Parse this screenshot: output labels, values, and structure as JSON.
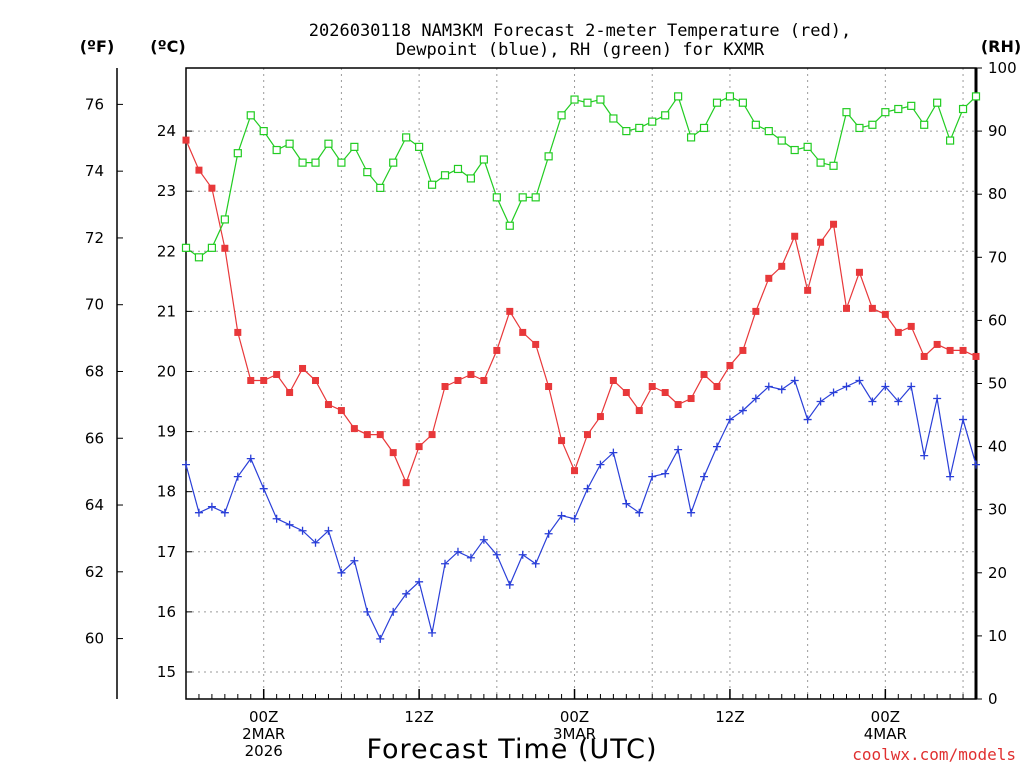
{
  "chart_data": {
    "type": "line",
    "title": [
      "2026030118 NAM3KM Forecast 2-meter Temperature (red),",
      "Dewpoint (blue), RH (green) for KXMR"
    ],
    "xlabel": "Forecast Time (UTC)",
    "credit": "coolwx.com/models",
    "units": {
      "fahrenheit": "(ºF)",
      "celsius": "(ºC)",
      "rh": "(RH)"
    },
    "x_hours": [
      18,
      19,
      20,
      21,
      22,
      23,
      24,
      25,
      26,
      27,
      28,
      29,
      30,
      31,
      32,
      33,
      34,
      35,
      36,
      37,
      38,
      39,
      40,
      41,
      42,
      43,
      44,
      45,
      46,
      47,
      48,
      49,
      50,
      51,
      52,
      53,
      54,
      55,
      56,
      57,
      58,
      59,
      60,
      61,
      62,
      63,
      64,
      65,
      66,
      67,
      68,
      69,
      70,
      71,
      72,
      73,
      74,
      75,
      76,
      77,
      78,
      79
    ],
    "xlim": [
      18,
      79
    ],
    "x_ticks": [
      {
        "hour": 24,
        "lines": [
          "00Z",
          "2MAR",
          "2026"
        ]
      },
      {
        "hour": 36,
        "lines": [
          "12Z"
        ]
      },
      {
        "hour": 48,
        "lines": [
          "00Z",
          "3MAR"
        ]
      },
      {
        "hour": 60,
        "lines": [
          "12Z"
        ]
      },
      {
        "hour": 72,
        "lines": [
          "00Z",
          "4MAR"
        ]
      }
    ],
    "celsius_axis": {
      "ylim": [
        14.55,
        25.05
      ],
      "ticks": [
        15,
        16,
        17,
        18,
        19,
        20,
        21,
        22,
        23,
        24
      ]
    },
    "fahrenheit_axis": {
      "ticks": [
        60,
        62,
        64,
        66,
        68,
        70,
        72,
        74,
        76
      ]
    },
    "rh_axis": {
      "ylim": [
        0,
        100
      ],
      "ticks": [
        0,
        10,
        20,
        30,
        40,
        50,
        60,
        70,
        80,
        90,
        100
      ]
    },
    "series": [
      {
        "name": "Temperature",
        "units": "C",
        "color": "#e8383a",
        "marker": "filled-square",
        "values": [
          23.85,
          23.35,
          23.05,
          22.05,
          20.65,
          19.85,
          19.85,
          19.95,
          19.65,
          20.05,
          19.85,
          19.45,
          19.35,
          19.05,
          18.95,
          18.95,
          18.65,
          18.15,
          18.75,
          18.95,
          19.75,
          19.85,
          19.95,
          19.85,
          20.35,
          21.0,
          20.65,
          20.45,
          19.75,
          18.85,
          18.35,
          18.95,
          19.25,
          19.85,
          19.65,
          19.35,
          19.75,
          19.65,
          19.45,
          19.55,
          19.95,
          19.75,
          20.1,
          20.35,
          21.0,
          21.55,
          21.75,
          22.25,
          21.35,
          22.15,
          22.45,
          21.05,
          21.65,
          21.05,
          20.95,
          20.65,
          20.75,
          20.25,
          20.45,
          20.35,
          20.35,
          20.25
        ]
      },
      {
        "name": "Dewpoint",
        "units": "C",
        "color": "#2a3fd8",
        "marker": "plus",
        "values": [
          18.45,
          17.65,
          17.75,
          17.65,
          18.25,
          18.55,
          18.05,
          17.55,
          17.45,
          17.35,
          17.15,
          17.35,
          16.65,
          16.85,
          16.0,
          15.55,
          16.0,
          16.3,
          16.5,
          15.65,
          16.8,
          17.0,
          16.9,
          17.2,
          16.95,
          16.45,
          16.95,
          16.8,
          17.3,
          17.6,
          17.55,
          18.05,
          18.45,
          18.65,
          17.8,
          17.65,
          18.25,
          18.3,
          18.7,
          17.65,
          18.25,
          18.75,
          19.2,
          19.35,
          19.55,
          19.75,
          19.7,
          19.85,
          19.2,
          19.5,
          19.65,
          19.75,
          19.85,
          19.5,
          19.75,
          19.5,
          19.75,
          18.6,
          19.55,
          18.25,
          19.2,
          18.45
        ]
      },
      {
        "name": "RH",
        "units": "%",
        "color": "#22cc22",
        "marker": "open-square",
        "values": [
          71.5,
          70.0,
          71.5,
          76.0,
          86.5,
          92.5,
          90.0,
          87.0,
          88.0,
          85.0,
          85.0,
          88.0,
          85.0,
          87.5,
          83.5,
          81.0,
          85.0,
          89.0,
          87.5,
          81.5,
          83.0,
          84.0,
          82.5,
          85.5,
          79.5,
          75.0,
          79.5,
          79.5,
          86.0,
          92.5,
          95.0,
          94.5,
          95.0,
          92.0,
          90.0,
          90.5,
          91.5,
          92.5,
          95.5,
          89.0,
          90.5,
          94.5,
          95.5,
          94.5,
          91.0,
          90.0,
          88.5,
          87.0,
          87.5,
          85.0,
          84.5,
          93.0,
          90.5,
          91.0,
          93.0,
          93.5,
          94.0,
          91.0,
          94.5,
          88.5,
          93.5,
          95.5
        ]
      }
    ],
    "grid": true
  }
}
